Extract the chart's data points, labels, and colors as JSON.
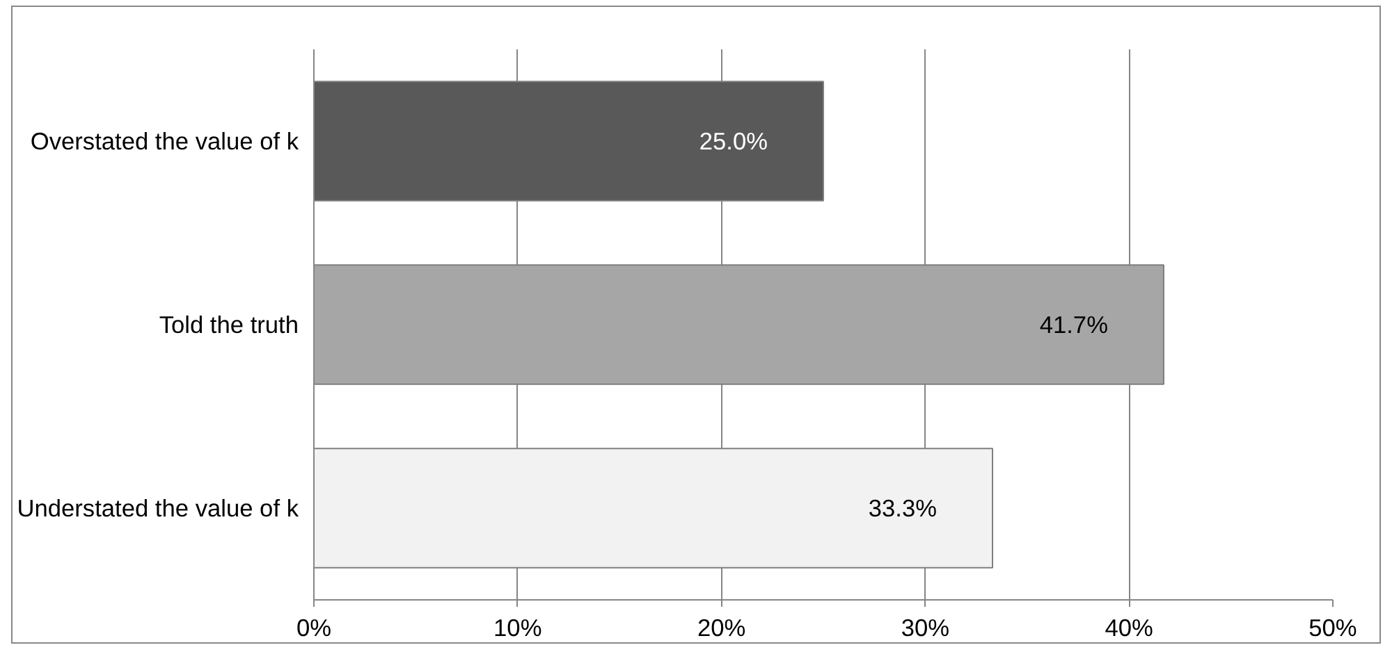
{
  "chart_data": {
    "type": "bar",
    "orientation": "horizontal",
    "categories": [
      "Overstated the value of k",
      "Told the truth",
      "Understated the value of k"
    ],
    "values": [
      25.0,
      41.7,
      33.3
    ],
    "colors": [
      "#595959",
      "#a6a6a6",
      "#f2f2f2"
    ],
    "value_labels": [
      "25.0%",
      "41.7%",
      "33.3%"
    ],
    "xlim": [
      0,
      50
    ],
    "xticks": [
      {
        "value": 0,
        "label": "0%"
      },
      {
        "value": 10,
        "label": "10%"
      },
      {
        "value": 20,
        "label": "20%"
      },
      {
        "value": 30,
        "label": "30%"
      },
      {
        "value": 40,
        "label": "40%"
      },
      {
        "value": 50,
        "label": "50%"
      }
    ],
    "grid": "x"
  }
}
